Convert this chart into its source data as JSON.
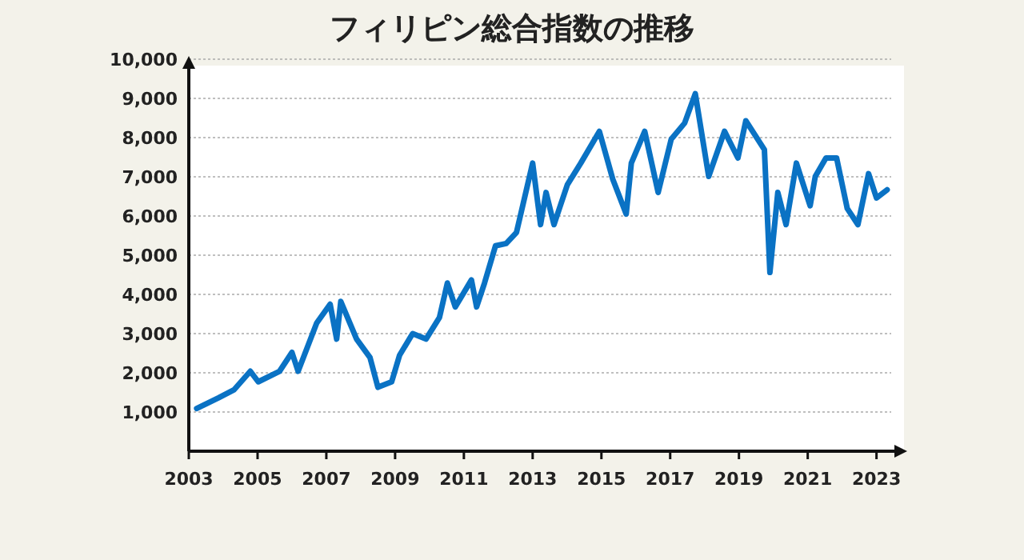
{
  "chart_data": {
    "type": "line",
    "title": "フィリピン総合指数の推移",
    "color": "#0a72c4",
    "x": [
      2003.23,
      2003.86,
      2004.32,
      2004.79,
      2005.02,
      2005.64,
      2006.0,
      2006.18,
      2006.72,
      2007.11,
      2007.3,
      2007.42,
      2007.88,
      2008.27,
      2008.5,
      2008.9,
      2009.13,
      2009.51,
      2009.9,
      2010.29,
      2010.52,
      2010.75,
      2011.22,
      2011.37,
      2011.6,
      2011.92,
      2012.23,
      2012.53,
      2013.0,
      2013.23,
      2013.39,
      2013.62,
      2014.01,
      2014.4,
      2014.94,
      2015.33,
      2015.72,
      2015.87,
      2016.26,
      2016.65,
      2017.03,
      2017.42,
      2017.73,
      2018.12,
      2018.58,
      2018.97,
      2019.2,
      2019.74,
      2019.9,
      2020.13,
      2020.37,
      2020.67,
      2021.07,
      2021.22,
      2021.53,
      2021.84,
      2022.15,
      2022.46,
      2022.77,
      2023.0,
      2023.31
    ],
    "values": [
      1090,
      1360,
      1570,
      2040,
      1770,
      2040,
      2520,
      2040,
      3270,
      3750,
      2860,
      3820,
      2860,
      2390,
      1630,
      1770,
      2450,
      3000,
      2860,
      3410,
      4290,
      3680,
      4370,
      3680,
      4290,
      5240,
      5300,
      5580,
      7350,
      5780,
      6600,
      5780,
      6800,
      7350,
      8160,
      6940,
      6050,
      7350,
      8160,
      6600,
      7960,
      8370,
      9120,
      7010,
      8160,
      7480,
      8430,
      7690,
      4560,
      6600,
      5780,
      7350,
      6260,
      7010,
      7480,
      7480,
      6190,
      5780,
      7080,
      6460,
      6670
    ],
    "xlim": [
      2003,
      2023.8
    ],
    "ylim": [
      0,
      10000
    ],
    "xticks": [
      2003,
      2005,
      2007,
      2009,
      2011,
      2013,
      2015,
      2017,
      2019,
      2021,
      2023
    ],
    "yticks": [
      {
        "value": 1000,
        "label": "1,000"
      },
      {
        "value": 2000,
        "label": "2,000"
      },
      {
        "value": 3000,
        "label": "3,000"
      },
      {
        "value": 4000,
        "label": "4,000"
      },
      {
        "value": 5000,
        "label": "5,000"
      },
      {
        "value": 6000,
        "label": "6,000"
      },
      {
        "value": 7000,
        "label": "7,000"
      },
      {
        "value": 8000,
        "label": "8,000"
      },
      {
        "value": 9000,
        "label": "9,000"
      },
      {
        "value": 10000,
        "label": "10,000"
      }
    ],
    "grid": "y"
  }
}
